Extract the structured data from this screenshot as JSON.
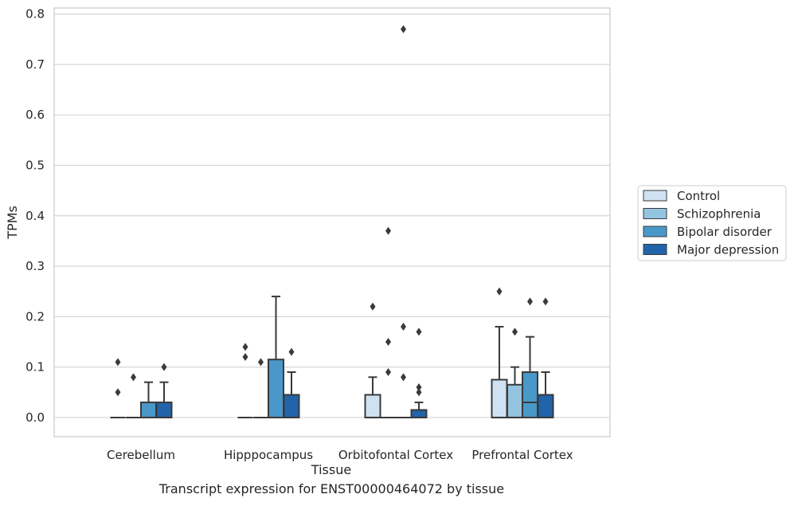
{
  "caption": "Transcript expression for ENST00000464072 by tissue",
  "chart_data": {
    "type": "box",
    "xlabel": "Tissue",
    "ylabel": "TPMs",
    "ylim": [
      -0.038,
      0.812
    ],
    "yticks": [
      0.0,
      0.1,
      0.2,
      0.3,
      0.4,
      0.5,
      0.6,
      0.7,
      0.8
    ],
    "ytick_labels": [
      "0.0",
      "0.1",
      "0.2",
      "0.3",
      "0.4",
      "0.5",
      "0.6",
      "0.7",
      "0.8"
    ],
    "grid": "horizontal",
    "legend_position": "right",
    "categories": [
      "Cerebellum",
      "Hipppocampus",
      "Orbitofontal Cortex",
      "Prefrontal Cortex"
    ],
    "series": [
      {
        "name": "Control",
        "color": "#d0e1f2",
        "boxes": [
          {
            "q1": 0.0,
            "median": 0.0,
            "q3": 0.0,
            "whisker_low": 0.0,
            "whisker_high": 0.0,
            "outliers": [
              0.05,
              0.11
            ]
          },
          {
            "q1": 0.0,
            "median": 0.0,
            "q3": 0.0,
            "whisker_low": 0.0,
            "whisker_high": 0.0,
            "outliers": [
              0.12,
              0.14
            ]
          },
          {
            "q1": 0.0,
            "median": 0.0,
            "q3": 0.045,
            "whisker_low": 0.0,
            "whisker_high": 0.08,
            "outliers": [
              0.22
            ]
          },
          {
            "q1": 0.0,
            "median": 0.0,
            "q3": 0.075,
            "whisker_low": 0.0,
            "whisker_high": 0.18,
            "outliers": [
              0.25
            ]
          }
        ]
      },
      {
        "name": "Schizophrenia",
        "color": "#94c4df",
        "boxes": [
          {
            "q1": 0.0,
            "median": 0.0,
            "q3": 0.0,
            "whisker_low": 0.0,
            "whisker_high": 0.0,
            "outliers": [
              0.08
            ]
          },
          {
            "q1": 0.0,
            "median": 0.0,
            "q3": 0.0,
            "whisker_low": 0.0,
            "whisker_high": 0.0,
            "outliers": [
              0.11
            ]
          },
          {
            "q1": 0.0,
            "median": 0.0,
            "q3": 0.0,
            "whisker_low": 0.0,
            "whisker_high": 0.0,
            "outliers": [
              0.09,
              0.15,
              0.37
            ]
          },
          {
            "q1": 0.0,
            "median": 0.0,
            "q3": 0.065,
            "whisker_low": 0.0,
            "whisker_high": 0.1,
            "outliers": [
              0.17
            ]
          }
        ]
      },
      {
        "name": "Bipolar disorder",
        "color": "#4a98c9",
        "boxes": [
          {
            "q1": 0.0,
            "median": 0.0,
            "q3": 0.03,
            "whisker_low": 0.0,
            "whisker_high": 0.07,
            "outliers": []
          },
          {
            "q1": 0.0,
            "median": 0.0,
            "q3": 0.115,
            "whisker_low": 0.0,
            "whisker_high": 0.24,
            "outliers": []
          },
          {
            "q1": 0.0,
            "median": 0.0,
            "q3": 0.0,
            "whisker_low": 0.0,
            "whisker_high": 0.0,
            "outliers": [
              0.08,
              0.18,
              0.77
            ]
          },
          {
            "q1": 0.0,
            "median": 0.03,
            "q3": 0.09,
            "whisker_low": 0.0,
            "whisker_high": 0.16,
            "outliers": [
              0.23
            ]
          }
        ]
      },
      {
        "name": "Major depression",
        "color": "#2264aa",
        "boxes": [
          {
            "q1": 0.0,
            "median": 0.0,
            "q3": 0.03,
            "whisker_low": 0.0,
            "whisker_high": 0.07,
            "outliers": [
              0.1
            ]
          },
          {
            "q1": 0.0,
            "median": 0.0,
            "q3": 0.045,
            "whisker_low": 0.0,
            "whisker_high": 0.09,
            "outliers": [
              0.13
            ]
          },
          {
            "q1": 0.0,
            "median": 0.0,
            "q3": 0.015,
            "whisker_low": 0.0,
            "whisker_high": 0.03,
            "outliers": [
              0.05,
              0.06,
              0.17
            ]
          },
          {
            "q1": 0.0,
            "median": 0.0,
            "q3": 0.045,
            "whisker_low": 0.0,
            "whisker_high": 0.09,
            "outliers": [
              0.23
            ]
          }
        ]
      }
    ]
  }
}
